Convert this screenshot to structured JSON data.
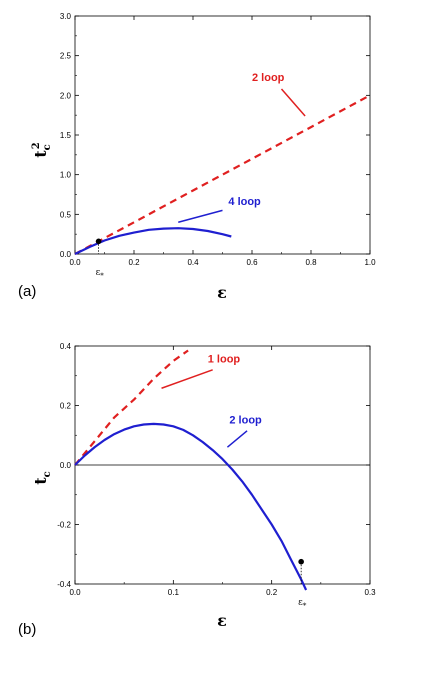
{
  "chart_data": [
    {
      "type": "line",
      "panel_label": "(a)",
      "xlabel": "ε",
      "ylabel_main": "t",
      "ylabel_sub": "c",
      "ylabel_sup": "2",
      "xlim": [
        0,
        1.0
      ],
      "ylim": [
        0,
        3.0
      ],
      "x_ticks": [
        "0.0",
        "0.2",
        "0.4",
        "0.6",
        "0.8",
        "1.0"
      ],
      "y_ticks": [
        "0.0",
        "0.5",
        "1.0",
        "1.5",
        "2.0",
        "2.5",
        "3.0"
      ],
      "series": [
        {
          "name": "2 loop",
          "color": "#e02020",
          "style": "dashed",
          "x": [
            0,
            0.2,
            0.4,
            0.6,
            0.8,
            1.0
          ],
          "y": [
            0,
            0.4,
            0.8,
            1.2,
            1.6,
            2.0
          ]
        },
        {
          "name": "4 loop",
          "color": "#1f1fd0",
          "style": "solid",
          "x": [
            0,
            0.05,
            0.1,
            0.15,
            0.2,
            0.25,
            0.3,
            0.35,
            0.4,
            0.45,
            0.5,
            0.53
          ],
          "y": [
            0,
            0.09,
            0.17,
            0.23,
            0.27,
            0.305,
            0.32,
            0.325,
            0.315,
            0.29,
            0.25,
            0.22
          ]
        }
      ],
      "marker": {
        "x": 0.08,
        "y": 0.16,
        "label": "ε",
        "label_sub": "*"
      },
      "annotations": [
        {
          "text": "2 loop",
          "color": "#e02020",
          "text_at": [
            0.6,
            2.18
          ],
          "arrow_from": [
            0.7,
            2.08
          ],
          "arrow_to": [
            0.78,
            1.74
          ]
        },
        {
          "text": "4 loop",
          "color": "#1f1fd0",
          "text_at": [
            0.52,
            0.62
          ],
          "arrow_from": [
            0.5,
            0.55
          ],
          "arrow_to": [
            0.35,
            0.4
          ]
        }
      ]
    },
    {
      "type": "line",
      "panel_label": "(b)",
      "xlabel": "ε",
      "ylabel_main": "t",
      "ylabel_sub": "c",
      "xlim": [
        0,
        0.3
      ],
      "ylim": [
        -0.4,
        0.4
      ],
      "x_ticks": [
        "0.0",
        "0.1",
        "0.2",
        "0.3"
      ],
      "y_ticks": [
        "-0.4",
        "-0.2",
        "0.0",
        "0.2",
        "0.4"
      ],
      "zero_line": true,
      "series": [
        {
          "name": "1 loop",
          "color": "#e02020",
          "style": "dashed",
          "x": [
            0,
            0.02,
            0.04,
            0.06,
            0.08,
            0.1,
            0.115
          ],
          "y": [
            0,
            0.08,
            0.16,
            0.22,
            0.29,
            0.35,
            0.385
          ]
        },
        {
          "name": "2 loop",
          "color": "#1f1fd0",
          "style": "solid",
          "x": [
            0,
            0.01,
            0.02,
            0.03,
            0.04,
            0.05,
            0.06,
            0.07,
            0.08,
            0.09,
            0.1,
            0.11,
            0.12,
            0.13,
            0.14,
            0.15,
            0.16,
            0.17,
            0.18,
            0.19,
            0.2,
            0.21,
            0.22,
            0.23,
            0.235
          ],
          "y": [
            0,
            0.032,
            0.06,
            0.084,
            0.104,
            0.119,
            0.13,
            0.136,
            0.138,
            0.136,
            0.13,
            0.118,
            0.1,
            0.077,
            0.05,
            0.02,
            -0.015,
            -0.055,
            -0.1,
            -0.15,
            -0.2,
            -0.255,
            -0.32,
            -0.385,
            -0.42
          ]
        }
      ],
      "marker": {
        "x": 0.23,
        "y": -0.325,
        "label": "ε",
        "label_sub": "*"
      },
      "annotations": [
        {
          "text": "1 loop",
          "color": "#e02020",
          "text_at": [
            0.135,
            0.345
          ],
          "arrow_from": [
            0.14,
            0.32
          ],
          "arrow_to": [
            0.088,
            0.258
          ]
        },
        {
          "text": "2 loop",
          "color": "#1f1fd0",
          "text_at": [
            0.157,
            0.14
          ],
          "arrow_from": [
            0.175,
            0.115
          ],
          "arrow_to": [
            0.155,
            0.06
          ]
        }
      ]
    }
  ]
}
